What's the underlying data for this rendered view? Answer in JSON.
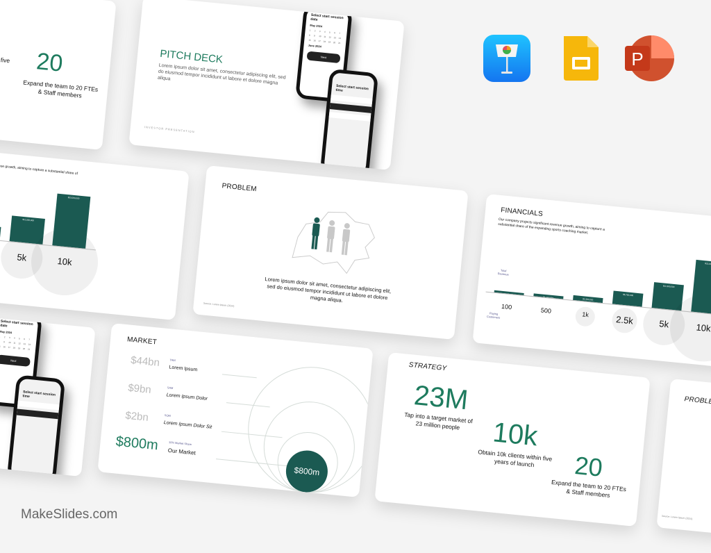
{
  "brand": "MakeSlides.com",
  "apps": [
    {
      "icon": "keynote-icon"
    },
    {
      "icon": "google-slides-icon"
    },
    {
      "icon": "powerpoint-icon"
    }
  ],
  "colors": {
    "accent": "#1e7b5e",
    "bar": "#1b5a52",
    "background": "#f4f4f4"
  },
  "strategy": {
    "title": "STRATEGY",
    "stats": [
      {
        "value": "23M",
        "desc": "Tap into a target market of 23 million people"
      },
      {
        "value": "10k",
        "desc": "Obtain 10k clients within five years of launch"
      },
      {
        "value": "20",
        "desc": "Expand the team to 20 FTEs & Staff members"
      }
    ]
  },
  "pitch": {
    "title": "PITCH DECK",
    "body": "Lorem ipsum dolor sit amet, consectetur adipiscing elit, sed do eiusmod tempor incididunt ut labore et dolore magna aliqua",
    "footer": "INVESTOR PRESENTATION"
  },
  "phones": {
    "date_title": "Select start session date",
    "may": "May 2024",
    "june": "June 2024",
    "next": "Next",
    "time_title": "Select start session time"
  },
  "problem": {
    "title": "PROBLEM",
    "body": "Lorem ipsum dolor sit amet, consectetur adipiscing elit, sed do eiusmod tempor incididunt ut labore et dolore magna aliqua.",
    "source": "Source: Lorem Ipsum (2024)"
  },
  "financials": {
    "title": "FINANCIALS",
    "body": "Our company projects significant revenue growth, aiming to capture a substantial share of the expanding sports coaching market.",
    "revenue_label": "Total Revenue",
    "customers_label": "Paying Customers",
    "chart_data": {
      "type": "bar",
      "categories": [
        "100",
        "500",
        "1k",
        "2.5k",
        "5k",
        "10k"
      ],
      "values": [
        230000,
        1150000,
        2300000,
        5750000,
        11500000,
        23000000
      ],
      "labels": [
        "$230,000",
        "$1,150,000",
        "$2,300,000",
        "$5,750,000",
        "$11,500,000",
        "$23,000,000"
      ]
    }
  },
  "market": {
    "title": "MARKET",
    "rows": [
      {
        "value": "$44bn",
        "tag": "TAM",
        "label": "Lorem Ipsum"
      },
      {
        "value": "$9bn",
        "tag": "SAM",
        "label": "Lorem Ipsum Dolor"
      },
      {
        "value": "$2bn",
        "tag": "SOM",
        "label": "Lorem Ipsum Dolor Sit"
      },
      {
        "value": "$800m",
        "tag": "10% Market Share",
        "label": "Our Market"
      }
    ],
    "circle_label": "$800m"
  }
}
